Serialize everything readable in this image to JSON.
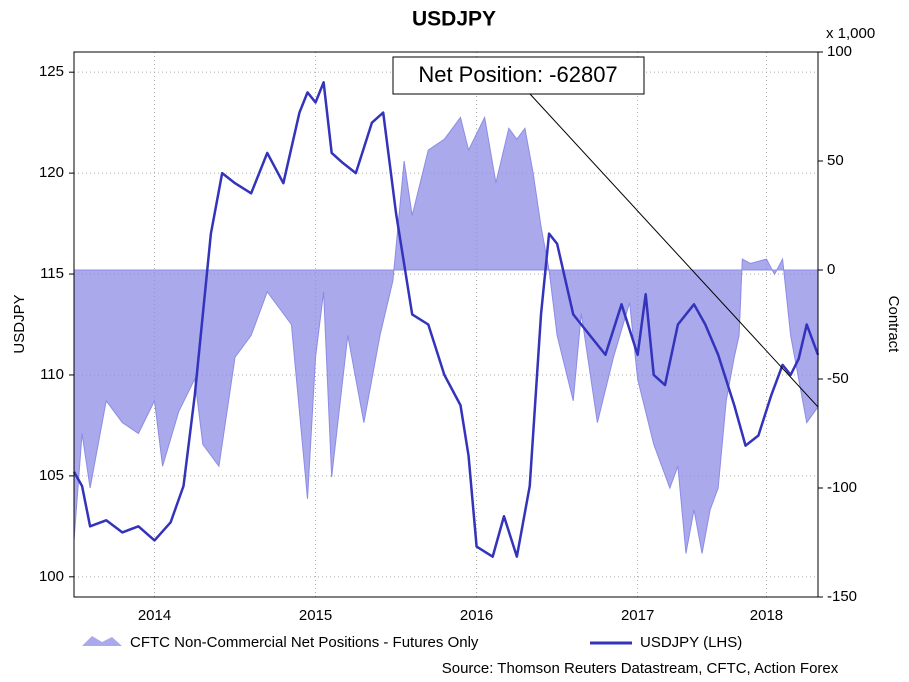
{
  "chart_data": {
    "type": "line",
    "title": "USDJPY",
    "y_label": "USDJPY",
    "y2_label": "Contract",
    "y2_unit": "x 1,000",
    "source": "Source: Thomson Reuters Datastream, CFTC, Action Forex",
    "annotation": "Net Position: -62807",
    "xlim": [
      2014,
      2018.62
    ],
    "xticks": [
      {
        "value": 2014.5,
        "label": "2014"
      },
      {
        "value": 2015.5,
        "label": "2015"
      },
      {
        "value": 2016.5,
        "label": "2016"
      },
      {
        "value": 2017.5,
        "label": "2017"
      },
      {
        "value": 2018.3,
        "label": "2018"
      }
    ],
    "ylim": [
      99,
      126
    ],
    "yticks": [
      100,
      105,
      110,
      115,
      120,
      125
    ],
    "y2lim": [
      -150,
      100
    ],
    "y2ticks": [
      -150,
      -100,
      -50,
      0,
      50,
      100
    ],
    "grid": true,
    "series": [
      {
        "name": "CFTC Non-Commercial Net Positions - Futures Only",
        "color": "#8c8ce6",
        "kind": "area",
        "axis": "y2",
        "x": [
          2014.0,
          2014.05,
          2014.1,
          2014.2,
          2014.3,
          2014.4,
          2014.5,
          2014.55,
          2014.65,
          2014.75,
          2014.8,
          2014.9,
          2015.0,
          2015.1,
          2015.2,
          2015.35,
          2015.45,
          2015.5,
          2015.55,
          2015.6,
          2015.7,
          2015.8,
          2015.9,
          2015.98,
          2016.05,
          2016.1,
          2016.2,
          2016.3,
          2016.4,
          2016.45,
          2016.55,
          2016.62,
          2016.7,
          2016.75,
          2016.8,
          2016.85,
          2016.9,
          2016.95,
          2017.0,
          2017.1,
          2017.15,
          2017.25,
          2017.35,
          2017.45,
          2017.5,
          2017.6,
          2017.7,
          2017.75,
          2017.8,
          2017.85,
          2017.9,
          2017.95,
          2018.0,
          2018.05,
          2018.1,
          2018.13,
          2018.15,
          2018.2,
          2018.3,
          2018.35,
          2018.4,
          2018.45,
          2018.5,
          2018.55,
          2018.62
        ],
        "values": [
          -124,
          -75,
          -100,
          -60,
          -70,
          -75,
          -60,
          -90,
          -65,
          -50,
          -80,
          -90,
          -40,
          -30,
          -10,
          -25,
          -105,
          -40,
          -10,
          -95,
          -30,
          -70,
          -30,
          -5,
          50,
          25,
          55,
          60,
          70,
          55,
          70,
          40,
          65,
          60,
          65,
          45,
          20,
          0,
          -30,
          -60,
          -20,
          -70,
          -40,
          -15,
          -50,
          -80,
          -100,
          -90,
          -130,
          -110,
          -130,
          -110,
          -100,
          -60,
          -40,
          -30,
          5,
          3,
          5,
          -2,
          5,
          -30,
          -50,
          -70,
          -62.807
        ]
      },
      {
        "name": "USDJPY (LHS)",
        "color": "#3333bb",
        "kind": "line",
        "axis": "y",
        "x": [
          2014.0,
          2014.05,
          2014.1,
          2014.2,
          2014.3,
          2014.4,
          2014.5,
          2014.6,
          2014.68,
          2014.75,
          2014.8,
          2014.85,
          2014.92,
          2015.0,
          2015.1,
          2015.2,
          2015.3,
          2015.4,
          2015.45,
          2015.5,
          2015.55,
          2015.6,
          2015.67,
          2015.75,
          2015.85,
          2015.92,
          2016.0,
          2016.1,
          2016.2,
          2016.3,
          2016.4,
          2016.45,
          2016.5,
          2016.6,
          2016.67,
          2016.75,
          2016.83,
          2016.9,
          2016.95,
          2017.0,
          2017.1,
          2017.2,
          2017.3,
          2017.4,
          2017.5,
          2017.55,
          2017.6,
          2017.67,
          2017.75,
          2017.85,
          2017.92,
          2018.0,
          2018.1,
          2018.17,
          2018.25,
          2018.33,
          2018.4,
          2018.45,
          2018.5,
          2018.55,
          2018.62
        ],
        "values": [
          105.2,
          104.5,
          102.5,
          102.8,
          102.2,
          102.5,
          101.8,
          102.7,
          104.5,
          109,
          113,
          117,
          120,
          119.5,
          119,
          121,
          119.5,
          123,
          124,
          123.5,
          124.5,
          121,
          120.5,
          120,
          122.5,
          123,
          118,
          113,
          112.5,
          110,
          108.5,
          106,
          101.5,
          101,
          103,
          101,
          104.5,
          113,
          117,
          116.5,
          113,
          112,
          111,
          113.5,
          111,
          114,
          110,
          109.5,
          112.5,
          113.5,
          112.5,
          111,
          108.5,
          106.5,
          107,
          109,
          110.5,
          110,
          110.8,
          112.5,
          111
        ]
      }
    ]
  }
}
